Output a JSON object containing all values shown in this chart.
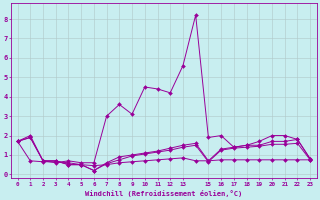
{
  "bg_color": "#c8eef0",
  "line_color": "#990099",
  "grid_color": "#b0c8c8",
  "xlabel": "Windchill (Refroidissement éolien,°C)",
  "series": [
    [
      1.7,
      2.0,
      0.7,
      0.6,
      0.7,
      0.6,
      0.6,
      3.0,
      3.6,
      3.1,
      4.5,
      4.4,
      4.2,
      5.6,
      8.2,
      1.9,
      2.0,
      1.4,
      1.5,
      1.7,
      2.0,
      2.0,
      1.8,
      0.8
    ],
    [
      1.7,
      1.9,
      0.7,
      0.7,
      0.5,
      0.5,
      0.2,
      0.6,
      0.9,
      1.0,
      1.1,
      1.2,
      1.35,
      1.5,
      1.6,
      0.7,
      1.3,
      1.4,
      1.5,
      1.5,
      1.7,
      1.7,
      1.8,
      0.8
    ],
    [
      1.7,
      1.9,
      0.7,
      0.7,
      0.5,
      0.5,
      0.2,
      0.55,
      0.75,
      0.95,
      1.05,
      1.15,
      1.25,
      1.4,
      1.5,
      0.65,
      1.25,
      1.35,
      1.4,
      1.45,
      1.55,
      1.55,
      1.6,
      0.75
    ],
    [
      1.7,
      0.7,
      0.65,
      0.65,
      0.6,
      0.5,
      0.45,
      0.5,
      0.6,
      0.65,
      0.7,
      0.75,
      0.8,
      0.85,
      0.7,
      0.7,
      0.75,
      0.75,
      0.75,
      0.75,
      0.75,
      0.75,
      0.75,
      0.75
    ]
  ],
  "xlim": [
    -0.5,
    23.5
  ],
  "ylim": [
    -0.2,
    8.8
  ],
  "xticks": [
    0,
    1,
    2,
    3,
    4,
    5,
    6,
    7,
    8,
    9,
    10,
    11,
    12,
    13,
    15,
    16,
    17,
    18,
    19,
    20,
    21,
    22,
    23
  ],
  "yticks": [
    0,
    1,
    2,
    3,
    4,
    5,
    6,
    7,
    8
  ]
}
